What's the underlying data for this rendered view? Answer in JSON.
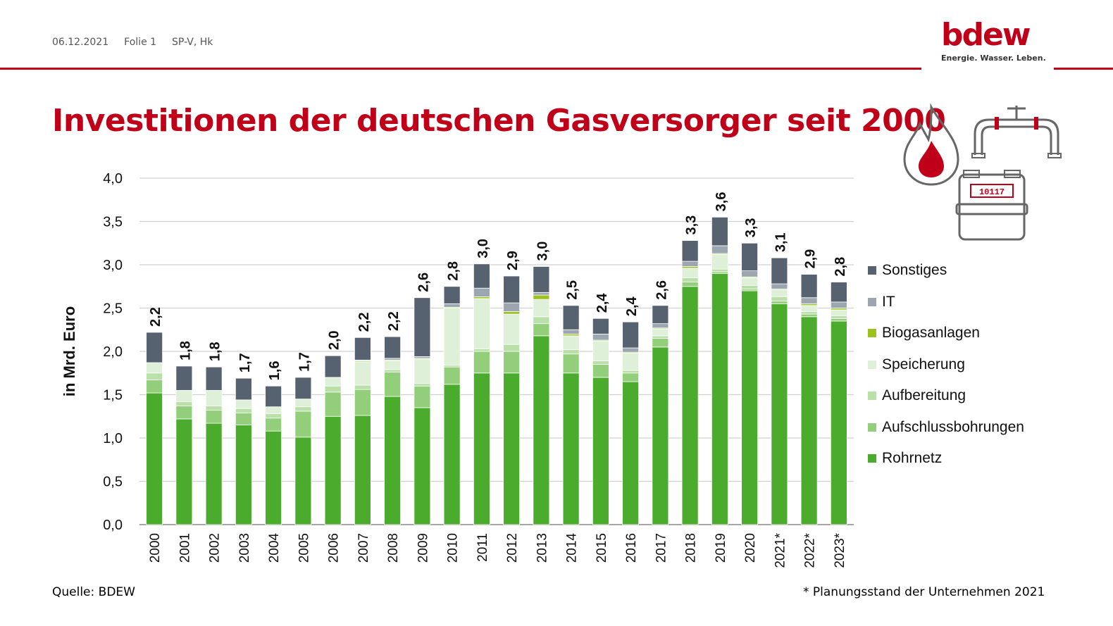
{
  "header": {
    "date": "06.12.2021",
    "slide": "Folie 1",
    "dept": "SP-V, Hk"
  },
  "logo": {
    "word": "bdew",
    "tagline": "Energie. Wasser. Leben."
  },
  "title": "Investitionen der deutschen Gasversorger seit 2000",
  "icons": {
    "flame": "flame-icon",
    "pipe": "pipe-valve-icon",
    "meter": "gas-meter-icon",
    "meter_reading": "10117"
  },
  "footer": {
    "source": "Quelle: BDEW",
    "footnote": "* Planungsstand der Unternehmen 2021"
  },
  "colors": {
    "brand": "#c00019",
    "grid": "#d0d0d0",
    "axis": "#888888"
  },
  "chart_data": {
    "type": "bar",
    "stacked": true,
    "ylabel": "in Mrd. Euro",
    "ylim": [
      0,
      4
    ],
    "yticks": [
      "0,0",
      "0,5",
      "1,0",
      "1,5",
      "2,0",
      "2,5",
      "3,0",
      "3,5",
      "4,0"
    ],
    "grid": true,
    "legend_position": "right",
    "categories": [
      "2000",
      "2001",
      "2002",
      "2003",
      "2004",
      "2005",
      "2006",
      "2007",
      "2008",
      "2009",
      "2010",
      "2011",
      "2012",
      "2013",
      "2014",
      "2015",
      "2016",
      "2017",
      "2018",
      "2019",
      "2020",
      "2021*",
      "2022*",
      "2023*"
    ],
    "totals": [
      "2,2",
      "1,8",
      "1,8",
      "1,7",
      "1,6",
      "1,7",
      "2,0",
      "2,2",
      "2,2",
      "2,6",
      "2,8",
      "3,0",
      "2,9",
      "3,0",
      "2,5",
      "2,4",
      "2,4",
      "2,6",
      "3,3",
      "3,6",
      "3,3",
      "3,1",
      "2,9",
      "2,8"
    ],
    "series": [
      {
        "name": "Rohrnetz",
        "color": "#4aab2c",
        "values": [
          1.52,
          1.22,
          1.17,
          1.15,
          1.08,
          1.01,
          1.25,
          1.26,
          1.48,
          1.35,
          1.62,
          1.75,
          1.75,
          2.18,
          1.75,
          1.7,
          1.65,
          2.05,
          2.75,
          2.9,
          2.7,
          2.55,
          2.4,
          2.35
        ]
      },
      {
        "name": "Aufschlussbohrungen",
        "color": "#93cf7a",
        "values": [
          0.15,
          0.15,
          0.15,
          0.14,
          0.15,
          0.3,
          0.28,
          0.3,
          0.28,
          0.25,
          0.2,
          0.25,
          0.25,
          0.14,
          0.22,
          0.15,
          0.1,
          0.1,
          0.05,
          0.02,
          0.02,
          0.03,
          0.03,
          0.03
        ]
      },
      {
        "name": "Aufbereitung",
        "color": "#b9e0a8",
        "values": [
          0.08,
          0.05,
          0.05,
          0.05,
          0.05,
          0.05,
          0.07,
          0.05,
          0.03,
          0.03,
          0.02,
          0.03,
          0.08,
          0.08,
          0.05,
          0.04,
          0.03,
          0.03,
          0.05,
          0.03,
          0.04,
          0.05,
          0.03,
          0.03
        ]
      },
      {
        "name": "Speicherung",
        "color": "#dff0d8",
        "values": [
          0.12,
          0.13,
          0.18,
          0.1,
          0.08,
          0.09,
          0.1,
          0.27,
          0.1,
          0.28,
          0.66,
          0.58,
          0.35,
          0.2,
          0.16,
          0.23,
          0.2,
          0.08,
          0.11,
          0.17,
          0.09,
          0.08,
          0.07,
          0.07
        ]
      },
      {
        "name": "Biogasanlagen",
        "color": "#9cc21c",
        "values": [
          0.0,
          0.0,
          0.0,
          0.0,
          0.0,
          0.0,
          0.0,
          0.01,
          0.01,
          0.01,
          0.01,
          0.02,
          0.03,
          0.05,
          0.02,
          0.01,
          0.01,
          0.01,
          0.02,
          0.01,
          0.01,
          0.01,
          0.02,
          0.02
        ]
      },
      {
        "name": "IT",
        "color": "#9ca6b0",
        "values": [
          0.0,
          0.0,
          0.0,
          0.0,
          0.0,
          0.0,
          0.0,
          0.01,
          0.02,
          0.02,
          0.04,
          0.1,
          0.1,
          0.03,
          0.05,
          0.07,
          0.05,
          0.05,
          0.06,
          0.09,
          0.07,
          0.06,
          0.07,
          0.07
        ]
      },
      {
        "name": "Sonstiges",
        "color": "#566270",
        "values": [
          0.35,
          0.28,
          0.27,
          0.25,
          0.24,
          0.25,
          0.25,
          0.26,
          0.25,
          0.68,
          0.2,
          0.28,
          0.31,
          0.3,
          0.28,
          0.18,
          0.3,
          0.21,
          0.24,
          0.33,
          0.32,
          0.3,
          0.27,
          0.23
        ]
      }
    ]
  }
}
